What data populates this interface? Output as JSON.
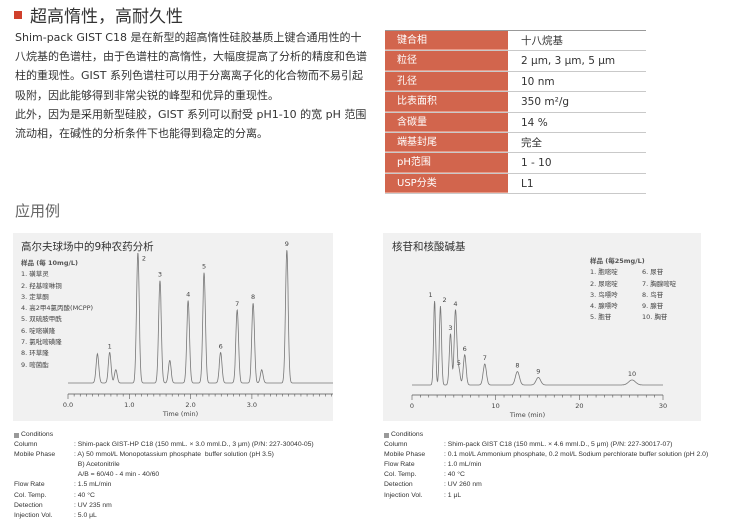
{
  "heading": "超高惰性，高耐久性",
  "paragraphs": [
    "Shim-pack GIST C18 是在新型的超高惰性硅胶基质上键合通用性的十八烷基的色谱柱，由于色谱柱的高惰性，大幅度提高了分析的精度和色谱柱的重现性。GIST 系列色谱柱可以用于分离离子化的化合物而不易引起吸附，因此能够得到非常尖锐的峰型和优异的重现性。",
    "此外，因为是采用新型硅胶，GIST 系列可以耐受 pH1-10 的宽 pH 范围流动相，在碱性的分析条件下也能得到稳定的分离。"
  ],
  "spec_table": [
    {
      "key": "键合相",
      "value": "十八烷基"
    },
    {
      "key": "粒径",
      "value": "2 μm, 3 μm, 5 μm"
    },
    {
      "key": "孔径",
      "value": "10 nm"
    },
    {
      "key": "比表面积",
      "value": "350 m²/g"
    },
    {
      "key": "含碳量",
      "value": "14 %"
    },
    {
      "key": "端基封尾",
      "value": "完全"
    },
    {
      "key": "pH范围",
      "value": "1 - 10"
    },
    {
      "key": "USP分类",
      "value": "L1"
    }
  ],
  "section2": "应用例",
  "colors": {
    "accent": "#d0402c",
    "table_key_bg": "#d2654d",
    "panel_bg": "#f1f1f1",
    "trace": "#777777"
  },
  "chart_data": [
    {
      "type": "line",
      "title": "高尔夫球场中的9种农药分析",
      "xlabel": "Time (min)",
      "ylabel": "",
      "xlim": [
        0,
        4.0
      ],
      "xticks": [
        "0.0",
        "1.0",
        "2.0",
        "3.0"
      ],
      "xtick_values": [
        0,
        1,
        2,
        3
      ],
      "legend_title": "样品 (每 10mg/L)",
      "legend": [
        "1. 磺草灵",
        "2. 羟基喹啉铜",
        "3. 定草酮",
        "4. 高2甲4氯丙酸(MCPP)",
        "5. 双硫胺甲酰",
        "6. 啶嘧磺隆",
        "7. 氯吡嘧磺隆",
        "8. 环草隆",
        "9. 嘧菌酯"
      ],
      "peaks": [
        {
          "label": "",
          "t": 0.48,
          "h": 22
        },
        {
          "label": "1",
          "t": 0.68,
          "h": 23
        },
        {
          "label": "",
          "t": 0.78,
          "h": 10
        },
        {
          "label": "2",
          "t": 1.14,
          "h": 98
        },
        {
          "label": "3",
          "t": 1.5,
          "h": 77
        },
        {
          "label": "",
          "t": 1.66,
          "h": 17
        },
        {
          "label": "4",
          "t": 1.96,
          "h": 62
        },
        {
          "label": "5",
          "t": 2.22,
          "h": 83
        },
        {
          "label": "6",
          "t": 2.49,
          "h": 23
        },
        {
          "label": "7",
          "t": 2.76,
          "h": 55
        },
        {
          "label": "8",
          "t": 3.02,
          "h": 60
        },
        {
          "label": "",
          "t": 3.16,
          "h": 10
        },
        {
          "label": "9",
          "t": 3.57,
          "h": 100
        }
      ]
    },
    {
      "type": "line",
      "title": "核苷和核酸碱基",
      "xlabel": "Time (min)",
      "ylabel": "",
      "xlim": [
        0,
        30
      ],
      "xticks": [
        "0",
        "10",
        "20",
        "30"
      ],
      "xtick_values": [
        0,
        10,
        20,
        30
      ],
      "legend_title": "样品 (每25mg/L)",
      "legend": [
        "1. 胞嘧啶",
        "2. 尿嘧啶",
        "3. 鸟嘌呤",
        "4. 腺嘌呤",
        "5. 胞苷",
        "6. 尿苷",
        "7. 胸腺嘧啶",
        "8. 鸟苷",
        "9. 腺苷",
        "10. 胸苷"
      ],
      "peaks": [
        {
          "label": "1",
          "t": 2.7,
          "h": 100
        },
        {
          "label": "2",
          "t": 3.4,
          "h": 94
        },
        {
          "label": "3",
          "t": 4.6,
          "h": 61
        },
        {
          "label": "4",
          "t": 5.2,
          "h": 89
        },
        {
          "label": "5",
          "t": 5.6,
          "h": 19
        },
        {
          "label": "6",
          "t": 6.3,
          "h": 36
        },
        {
          "label": "7",
          "t": 8.7,
          "h": 25
        },
        {
          "label": "8",
          "t": 12.6,
          "h": 16
        },
        {
          "label": "9",
          "t": 15.1,
          "h": 9
        },
        {
          "label": "10",
          "t": 26.3,
          "h": 6
        }
      ]
    }
  ],
  "conditions": [
    {
      "title": "Conditions",
      "rows": [
        [
          "Column",
          ": Shim-pack GIST-HP C18 (150 mmL. × 3.0 mmI.D., 3 μm) (P/N: 227-30040-05)"
        ],
        [
          "Mobile Phase",
          ": A) 50 mmol/L Monopotassium phosphate  buffer solution (pH 3.5)"
        ],
        [
          "",
          "  B) Acetonitrile"
        ],
        [
          "",
          "  A/B = 60/40 - 4 min - 40/60"
        ],
        [
          "Flow Rate",
          ": 1.5 mL/min"
        ],
        [
          "Col. Temp.",
          ": 40 °C"
        ],
        [
          "Detection",
          ": UV 235 nm"
        ],
        [
          "Injection Vol.",
          ": 5.0 μL"
        ]
      ]
    },
    {
      "title": "Conditions",
      "rows": [
        [
          "Column",
          ": Shim-pack GIST C18 (150 mmL. × 4.6 mmI.D., 5 μm) (P/N: 227-30017-07)"
        ],
        [
          "Mobile Phase",
          ": 0.1 mol/L Ammonium phosphate, 0.2 mol/L Sodium perchlorate buffer solution (pH 2.0)"
        ],
        [
          "Flow Rate",
          ": 1.0 mL/min"
        ],
        [
          "Col. Temp.",
          ": 40 °C"
        ],
        [
          "Detection",
          ": UV 260 nm"
        ],
        [
          "Injection Vol.",
          ": 1 μL"
        ]
      ]
    }
  ]
}
